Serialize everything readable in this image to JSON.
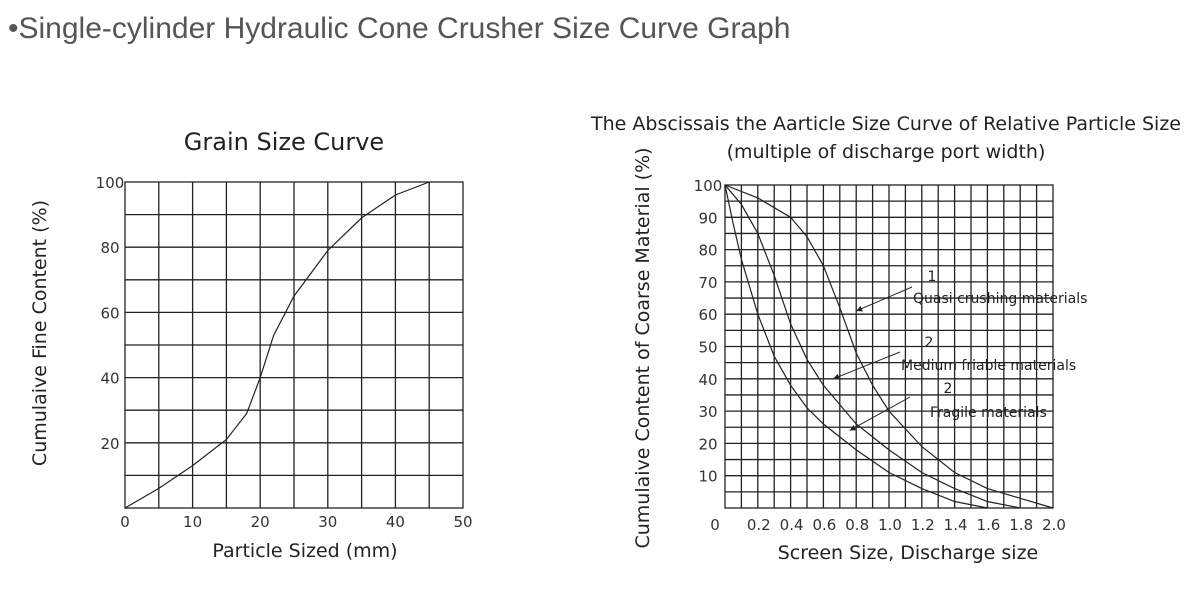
{
  "page": {
    "title": "•Single-cylinder Hydraulic Cone Crusher Size Curve Graph"
  },
  "chart_data": [
    {
      "type": "line",
      "title": "Grain Size Curve",
      "xlabel": "Particle Sized (mm)",
      "ylabel": "Cumulaive Fine Content (%)",
      "xlim": [
        0,
        50
      ],
      "ylim": [
        0,
        100
      ],
      "x_ticks": [
        "0",
        "10",
        "20",
        "30",
        "40",
        "50"
      ],
      "y_ticks": [
        "20",
        "40",
        "60",
        "80",
        "100"
      ],
      "grid": true,
      "series": [
        {
          "x": [
            0,
            5,
            10,
            15,
            18,
            20,
            22,
            25,
            30,
            35,
            40,
            45
          ],
          "y": [
            0,
            6,
            13,
            21,
            29,
            40,
            53,
            65,
            79,
            89,
            96,
            100
          ]
        }
      ]
    },
    {
      "type": "line",
      "title": "The Abscissais the Aarticle Size Curve of Relative Particle Size",
      "subtitle": "(multiple of discharge port width)",
      "xlabel": "Screen Size, Discharge size",
      "ylabel": "Cumulaive Content of Coarse Material (%)",
      "xlim": [
        0,
        2.0
      ],
      "ylim": [
        0,
        100
      ],
      "x_ticks": [
        "0",
        "0.2",
        "0.4",
        "0.6",
        "0.8",
        "1.0",
        "1.2",
        "1.4",
        "1.6",
        "1.8",
        "2.0"
      ],
      "y_ticks": [
        "10",
        "20",
        "30",
        "40",
        "50",
        "60",
        "70",
        "80",
        "90",
        "100"
      ],
      "grid": true,
      "series": [
        {
          "x": [
            0,
            0.2,
            0.4,
            0.5,
            0.6,
            0.7,
            0.8,
            0.9,
            1.0,
            1.2,
            1.4,
            1.6,
            1.8,
            2.0
          ],
          "y": [
            100,
            96,
            90,
            84,
            75,
            62,
            48,
            38,
            30,
            19,
            11,
            6,
            3,
            0
          ]
        },
        {
          "x": [
            0,
            0.1,
            0.2,
            0.3,
            0.4,
            0.5,
            0.6,
            0.8,
            1.0,
            1.2,
            1.4,
            1.6,
            1.8
          ],
          "y": [
            100,
            94,
            85,
            72,
            57,
            46,
            38,
            26,
            18,
            11,
            6,
            2,
            0
          ]
        },
        {
          "x": [
            0,
            0.05,
            0.1,
            0.2,
            0.3,
            0.4,
            0.5,
            0.6,
            0.8,
            1.0,
            1.2,
            1.4,
            1.6
          ],
          "y": [
            100,
            88,
            77,
            60,
            47,
            38,
            31,
            26,
            18,
            11,
            6,
            2,
            0
          ]
        }
      ],
      "annotations": [
        {
          "number": "1",
          "text": "Quasi crushing materials",
          "x": 0.8,
          "y": 61
        },
        {
          "number": "2",
          "text": "Medium friable materials",
          "x": 0.66,
          "y": 40
        },
        {
          "number": "2",
          "text": "Fragile materials",
          "x": 0.76,
          "y": 24
        }
      ]
    }
  ]
}
